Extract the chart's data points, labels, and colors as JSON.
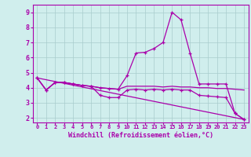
{
  "title": "",
  "xlabel": "Windchill (Refroidissement éolien,°C)",
  "ylabel": "",
  "background_color": "#d0eeed",
  "grid_color": "#a8cccc",
  "line_color": "#aa00aa",
  "xlim": [
    -0.5,
    23.5
  ],
  "ylim": [
    1.7,
    9.5
  ],
  "yticks": [
    2,
    3,
    4,
    5,
    6,
    7,
    8,
    9
  ],
  "xticks": [
    0,
    1,
    2,
    3,
    4,
    5,
    6,
    7,
    8,
    9,
    10,
    11,
    12,
    13,
    14,
    15,
    16,
    17,
    18,
    19,
    20,
    21,
    22,
    23
  ],
  "series": [
    {
      "x": [
        0,
        1,
        2,
        3,
        4,
        5,
        6,
        7,
        8,
        9,
        10,
        11,
        12,
        13,
        14,
        15,
        16,
        17,
        18,
        19,
        20,
        21,
        22,
        23
      ],
      "y": [
        4.65,
        3.85,
        4.35,
        4.35,
        4.25,
        4.15,
        4.1,
        4.0,
        3.95,
        3.9,
        4.8,
        6.3,
        6.35,
        6.6,
        7.0,
        9.0,
        8.5,
        6.3,
        4.25,
        4.25,
        4.25,
        4.25,
        2.3,
        1.9
      ],
      "marker": true
    },
    {
      "x": [
        0,
        1,
        2,
        3,
        4,
        5,
        6,
        7,
        8,
        9,
        10,
        11,
        12,
        13,
        14,
        15,
        16,
        17,
        18,
        19,
        20,
        21,
        22,
        23
      ],
      "y": [
        4.65,
        3.85,
        4.35,
        4.35,
        4.25,
        4.15,
        4.1,
        4.0,
        3.95,
        3.9,
        4.1,
        4.1,
        4.1,
        4.1,
        4.05,
        4.1,
        4.05,
        4.05,
        4.0,
        4.0,
        3.95,
        3.95,
        3.9,
        3.85
      ],
      "marker": false
    },
    {
      "x": [
        0,
        1,
        2,
        3,
        4,
        5,
        6,
        7,
        8,
        9,
        10,
        11,
        12,
        13,
        14,
        15,
        16,
        17,
        18,
        19,
        20,
        21,
        22,
        23
      ],
      "y": [
        4.65,
        3.85,
        4.35,
        4.35,
        4.25,
        4.15,
        4.1,
        3.5,
        3.35,
        3.35,
        3.85,
        3.9,
        3.85,
        3.9,
        3.85,
        3.9,
        3.85,
        3.85,
        3.5,
        3.45,
        3.4,
        3.35,
        2.3,
        1.9
      ],
      "marker": true
    },
    {
      "x": [
        0,
        23
      ],
      "y": [
        4.65,
        1.9
      ],
      "marker": false
    }
  ]
}
